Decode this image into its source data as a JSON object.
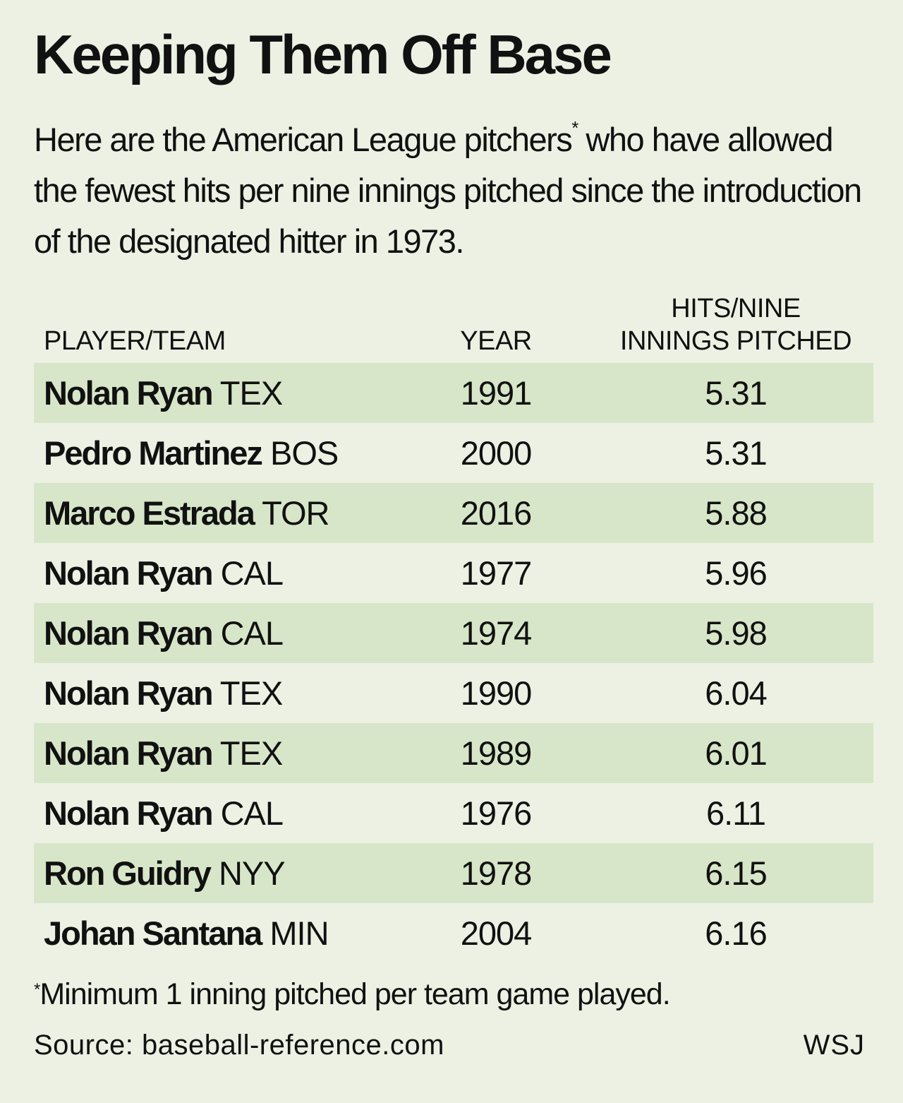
{
  "title": "Keeping Them Off Base",
  "subtitle": {
    "text_before": "Here are the American League pitchers",
    "marker": "*",
    "text_after": " who have allowed the fewest hits per nine innings pitched since the introduction of the designated hitter in 1973."
  },
  "chart_data": {
    "type": "table",
    "columns": [
      "PLAYER/TEAM",
      "YEAR",
      "HITS/NINE INNINGS PITCHED"
    ],
    "header_lines": {
      "player": "PLAYER/TEAM",
      "year": "YEAR",
      "hits_line1": "HITS/NINE",
      "hits_line2": "INNINGS PITCHED"
    },
    "rows": [
      {
        "player": "Nolan Ryan",
        "team": "TEX",
        "year": "1991",
        "hits_per_nine": "5.31"
      },
      {
        "player": "Pedro Martinez",
        "team": "BOS",
        "year": "2000",
        "hits_per_nine": "5.31"
      },
      {
        "player": "Marco Estrada",
        "team": "TOR",
        "year": "2016",
        "hits_per_nine": "5.88"
      },
      {
        "player": "Nolan Ryan",
        "team": "CAL",
        "year": "1977",
        "hits_per_nine": "5.96"
      },
      {
        "player": "Nolan Ryan",
        "team": "CAL",
        "year": "1974",
        "hits_per_nine": "5.98"
      },
      {
        "player": "Nolan Ryan",
        "team": "TEX",
        "year": "1990",
        "hits_per_nine": "6.04"
      },
      {
        "player": "Nolan Ryan",
        "team": "TEX",
        "year": "1989",
        "hits_per_nine": "6.01"
      },
      {
        "player": "Nolan Ryan",
        "team": "CAL",
        "year": "1976",
        "hits_per_nine": "6.11"
      },
      {
        "player": "Ron Guidry",
        "team": "NYY",
        "year": "1978",
        "hits_per_nine": "6.15"
      },
      {
        "player": "Johan Santana",
        "team": "MIN",
        "year": "2004",
        "hits_per_nine": "6.16"
      }
    ]
  },
  "footnote": {
    "marker": "*",
    "text": "Minimum 1 inning pitched per team game played."
  },
  "source": "Source: baseball-reference.com",
  "credit": "WSJ",
  "colors": {
    "background": "#edf1e4",
    "row_shading": "#d7e6c8",
    "text": "#111111"
  }
}
